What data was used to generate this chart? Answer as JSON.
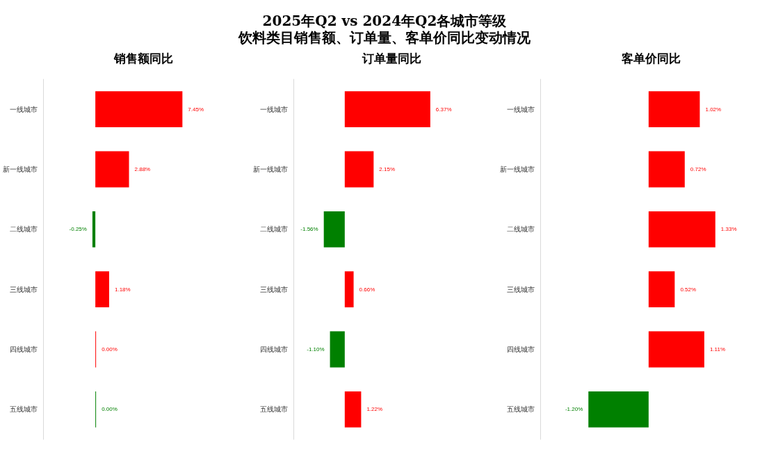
{
  "chart_data": [
    {
      "type": "bar",
      "orientation": "horizontal",
      "xlabel": "销售额同比",
      "categories": [
        "一线城市",
        "新一线城市",
        "二线城市",
        "三线城市",
        "四线城市",
        "五线城市"
      ],
      "values": [
        7.45,
        2.88,
        -0.25,
        1.18,
        0,
        0
      ],
      "colors": [
        "#ff0000",
        "#ff0000",
        "#008000",
        "#ff0000",
        "#ff0000",
        "#008000"
      ],
      "value_labels": [
        "7.45%",
        "2.88%",
        "-0.25%",
        "1.18%",
        "0.00%",
        "0.00%"
      ]
    },
    {
      "type": "bar",
      "orientation": "horizontal",
      "title": "2025年Q2 vs 2024年Q2各城市等级",
      "subtitle": "饮料类目销售额、订单量、客单价同比变动情况",
      "xlabel": "订单量同比",
      "categories": [
        "一线城市",
        "新一线城市",
        "二线城市",
        "三线城市",
        "四线城市",
        "五线城市"
      ],
      "values": [
        6.37,
        2.15,
        -1.56,
        0.66,
        -1.1,
        1.22
      ],
      "colors": [
        "#ff0000",
        "#ff0000",
        "#008000",
        "#ff0000",
        "#008000",
        "#ff0000"
      ],
      "value_labels": [
        "6.37%",
        "2.15%",
        "-1.56%",
        "0.66%",
        "-1.10%",
        "1.22%"
      ]
    },
    {
      "type": "bar",
      "orientation": "horizontal",
      "xlabel": "客单价同比",
      "categories": [
        "一线城市",
        "新一线城市",
        "二线城市",
        "三线城市",
        "四线城市",
        "五线城市"
      ],
      "values": [
        1.02,
        0.72,
        1.33,
        0.52,
        1.11,
        -1.2
      ],
      "colors": [
        "#ff0000",
        "#ff0000",
        "#ff0000",
        "#ff0000",
        "#ff0000",
        "#008000"
      ],
      "value_labels": [
        "1.02%",
        "0.72%",
        "1.33%",
        "0.52%",
        "1.11%",
        "-1.20%"
      ]
    }
  ]
}
